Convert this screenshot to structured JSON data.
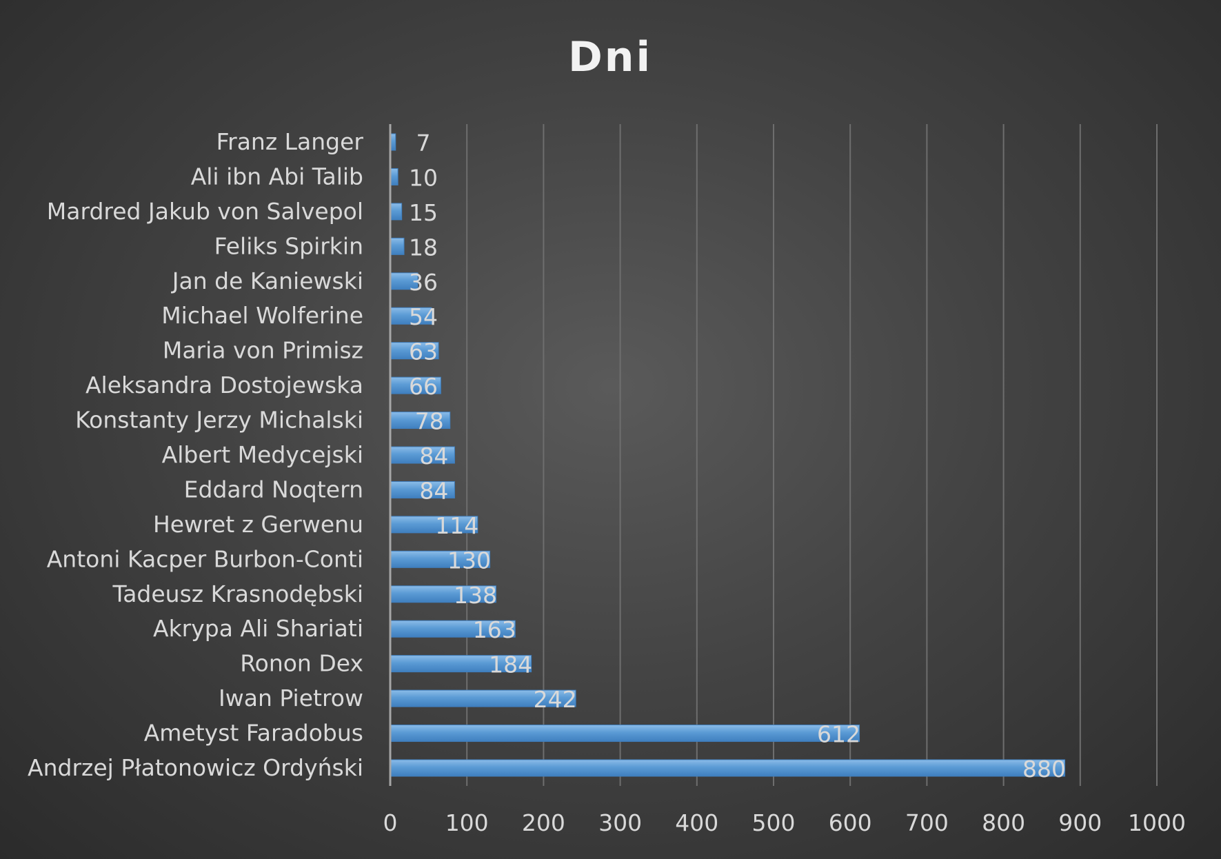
{
  "chart_data": {
    "type": "bar",
    "orientation": "horizontal",
    "title": "Dni",
    "categories": [
      "Franz Langer",
      "Ali ibn Abi Talib",
      "Mardred Jakub von Salvepol",
      "Feliks Spirkin",
      "Jan de Kaniewski",
      "Michael Wolferine",
      "Maria von Primisz",
      "Aleksandra Dostojewska",
      "Konstanty Jerzy Michalski",
      "Albert Medycejski",
      "Eddard Noqtern",
      "Hewret z Gerwenu",
      "Antoni Kacper Burbon-Conti",
      "Tadeusz Krasnodębski",
      "Akrypa Ali Shariati",
      "Ronon Dex",
      "Iwan Pietrow",
      "Ametyst Faradobus",
      "Andrzej Płatonowicz Ordyński"
    ],
    "values": [
      7,
      10,
      15,
      18,
      36,
      54,
      63,
      66,
      78,
      84,
      84,
      114,
      130,
      138,
      163,
      184,
      242,
      612,
      880
    ],
    "xlim": [
      0,
      1000
    ],
    "xticks": [
      "0",
      "100",
      "200",
      "300",
      "400",
      "500",
      "600",
      "700",
      "800",
      "900",
      "1000"
    ],
    "grid": "vertical",
    "legend": "none",
    "data_labels": true,
    "colors": {
      "bar": "#5b9bd5",
      "bar_highlight": "#8cbce8",
      "text": "#d9d9d9",
      "title": "#f2f2f2",
      "grid": "#6e6e6e",
      "axis": "#a6a6a6"
    }
  }
}
